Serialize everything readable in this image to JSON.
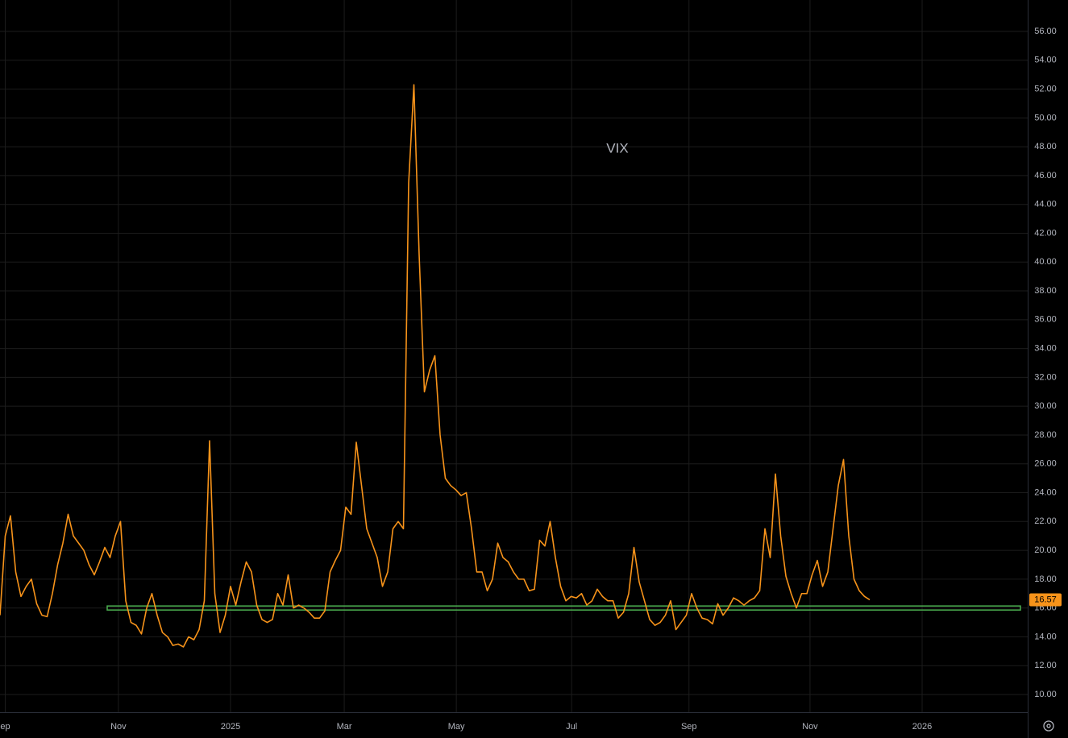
{
  "chart_data": {
    "type": "line",
    "series": [
      {
        "name": "VIX",
        "color": "#f7931a",
        "values": [
          15.5,
          21,
          22.4,
          18.5,
          16.8,
          17.5,
          18,
          16.3,
          15.5,
          15.4,
          17,
          19,
          20.5,
          22.5,
          21,
          20.5,
          20,
          19,
          18.3,
          19.2,
          20.2,
          19.5,
          21,
          22,
          16.5,
          15,
          14.8,
          14.2,
          16,
          17,
          15.5,
          14.3,
          14,
          13.4,
          13.5,
          13.3,
          14,
          13.8,
          14.5,
          16.5,
          27.6,
          17,
          14.3,
          15.5,
          17.5,
          16.2,
          17.8,
          19.2,
          18.5,
          16.2,
          15.2,
          15,
          15.2,
          17,
          16.2,
          18.3,
          16,
          16.2,
          16,
          15.7,
          15.3,
          15.3,
          15.8,
          18.5,
          19.3,
          20,
          23,
          22.5,
          27.5,
          24.5,
          21.5,
          20.5,
          19.5,
          17.5,
          18.5,
          21.5,
          22,
          21.5,
          45.5,
          52.3,
          40.5,
          31,
          32.5,
          33.5,
          28,
          25,
          24.5,
          24.2,
          23.8,
          24,
          21.5,
          18.5,
          18.5,
          17.2,
          18,
          20.5,
          19.5,
          19.2,
          18.5,
          18,
          18,
          17.2,
          17.3,
          20.7,
          20.3,
          22,
          19.5,
          17.5,
          16.5,
          16.8,
          16.7,
          17,
          16.2,
          16.5,
          17.3,
          16.8,
          16.5,
          16.5,
          15.3,
          15.7,
          17,
          20.2,
          17.8,
          16.5,
          15.2,
          14.8,
          15,
          15.5,
          16.5,
          14.5,
          15,
          15.5,
          17,
          16,
          15.3,
          15.2,
          14.9,
          16.3,
          15.5,
          16,
          16.7,
          16.5,
          16.2,
          16.5,
          16.7,
          17.2,
          21.5,
          19.5,
          25.3,
          21,
          18.2,
          17,
          16,
          17,
          17,
          18.3,
          19.3,
          17.5,
          18.5,
          21.5,
          24.5,
          26.3,
          21,
          18,
          17.2,
          16.8,
          16.57
        ]
      }
    ],
    "xlim": [
      0,
      196.15
    ],
    "xticks": [
      {
        "value": 1,
        "label": "ep"
      },
      {
        "value": 22.6,
        "label": "Nov"
      },
      {
        "value": 44,
        "label": "2025"
      },
      {
        "value": 65.7,
        "label": "Mar"
      },
      {
        "value": 87.1,
        "label": "May"
      },
      {
        "value": 109.1,
        "label": "Jul"
      },
      {
        "value": 131.5,
        "label": "Sep"
      },
      {
        "value": 154.6,
        "label": "Nov"
      },
      {
        "value": 176,
        "label": "2026"
      }
    ],
    "ylim": [
      8.77,
      58.18
    ],
    "yticks": [
      {
        "value": 10,
        "label": "10.00"
      },
      {
        "value": 12,
        "label": "12.00"
      },
      {
        "value": 14,
        "label": "14.00"
      },
      {
        "value": 16,
        "label": "16.00"
      },
      {
        "value": 18,
        "label": "18.00"
      },
      {
        "value": 20,
        "label": "20.00"
      },
      {
        "value": 22,
        "label": "22.00"
      },
      {
        "value": 24,
        "label": "24.00"
      },
      {
        "value": 26,
        "label": "26.00"
      },
      {
        "value": 28,
        "label": "28.00"
      },
      {
        "value": 30,
        "label": "30.00"
      },
      {
        "value": 32,
        "label": "32.00"
      },
      {
        "value": 34,
        "label": "34.00"
      },
      {
        "value": 36,
        "label": "36.00"
      },
      {
        "value": 38,
        "label": "38.00"
      },
      {
        "value": 40,
        "label": "40.00"
      },
      {
        "value": 42,
        "label": "42.00"
      },
      {
        "value": 44,
        "label": "44.00"
      },
      {
        "value": 46,
        "label": "46.00"
      },
      {
        "value": 48,
        "label": "48.00"
      },
      {
        "value": 50,
        "label": "50.00"
      },
      {
        "value": 52,
        "label": "52.00"
      },
      {
        "value": 54,
        "label": "54.00"
      },
      {
        "value": 56,
        "label": "56.00"
      }
    ],
    "grid": true,
    "hline": {
      "value": 16,
      "color": "#4caf50"
    }
  }
}
